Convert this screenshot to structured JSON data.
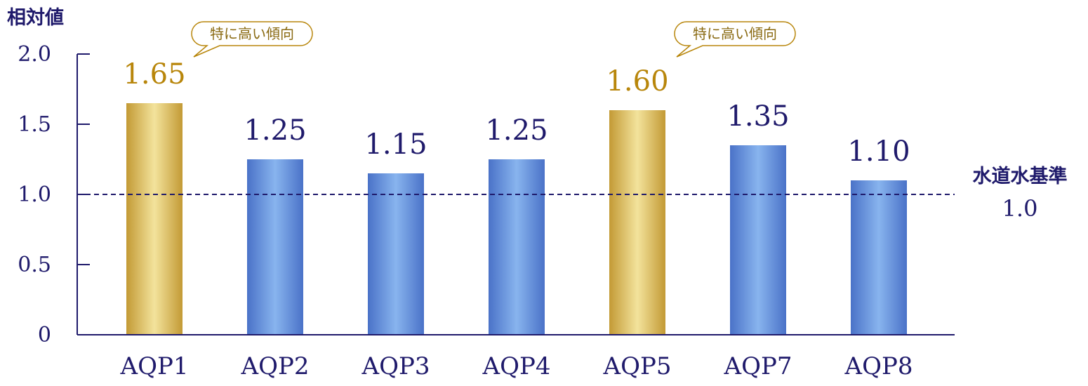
{
  "chart_data": {
    "type": "bar",
    "ylabel": "相対値",
    "ylim": [
      0,
      2.0
    ],
    "yticks": [
      "0",
      "0.5",
      "1.0",
      "1.5",
      "2.0"
    ],
    "ytick_values": [
      0,
      0.5,
      1.0,
      1.5,
      2.0
    ],
    "categories": [
      "AQP1",
      "AQP2",
      "AQP3",
      "AQP4",
      "AQP5",
      "AQP7",
      "AQP8"
    ],
    "values": [
      1.65,
      1.25,
      1.15,
      1.25,
      1.6,
      1.35,
      1.1
    ],
    "value_labels": [
      "1.65",
      "1.25",
      "1.15",
      "1.25",
      "1.60",
      "1.35",
      "1.10"
    ],
    "highlighted": [
      true,
      false,
      false,
      false,
      true,
      false,
      false
    ],
    "reference_line": {
      "value": 1.0,
      "label": "水道水基準",
      "value_label": "1.0",
      "style": "dashed"
    },
    "callouts": [
      {
        "category": "AQP1",
        "text": "特に高い傾向"
      },
      {
        "category": "AQP5",
        "text": "特に高い傾向"
      }
    ],
    "grid": false
  },
  "colors": {
    "axis": "#1f1a6b",
    "text": "#1f1a6b",
    "highlight": "#b8860b",
    "highlight_light": "#f2e199",
    "bar_edge": "#4b74c9",
    "bar_light": "#86b2ec"
  }
}
